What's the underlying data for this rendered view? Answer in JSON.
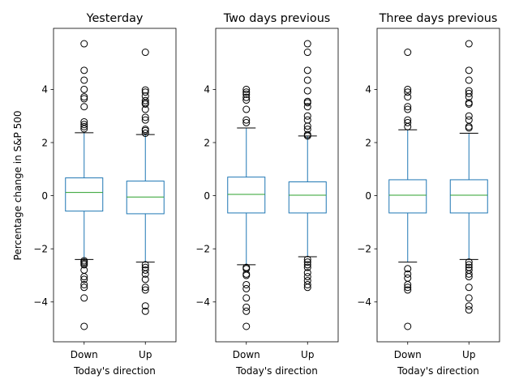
{
  "figure": {
    "shared_ylabel": "Percentage change in S&P 500",
    "box_color": "#1f77b4",
    "median_color": "#2ca02c",
    "flier_color": "#000000"
  },
  "chart_data": [
    {
      "type": "box",
      "title": "Yesterday",
      "xlabel": "Today's direction",
      "ylim": [
        -5.5,
        6.3
      ],
      "yticks": [
        -4,
        -2,
        0,
        2,
        4
      ],
      "ytick_labels": [
        "−4",
        "−2",
        "0",
        "2",
        "4"
      ],
      "grid": false,
      "categories": [
        "Down",
        "Up"
      ],
      "boxes": [
        {
          "category": "Down",
          "whisker_low": -2.4,
          "q1": -0.58,
          "median": 0.12,
          "q3": 0.67,
          "whisker_high": 2.37,
          "fliers": [
            5.72,
            4.72,
            4.35,
            4.0,
            3.72,
            3.65,
            3.35,
            2.78,
            2.68,
            2.6,
            2.52,
            -2.45,
            -2.5,
            -2.55,
            -2.6,
            -2.8,
            -3.05,
            -3.15,
            -3.35,
            -3.45,
            -3.85,
            -4.92
          ]
        },
        {
          "category": "Up",
          "whisker_low": -2.5,
          "q1": -0.68,
          "median": -0.05,
          "q3": 0.55,
          "whisker_high": 2.3,
          "fliers": [
            5.4,
            3.98,
            3.9,
            3.75,
            3.58,
            3.5,
            3.45,
            3.25,
            2.95,
            2.85,
            2.5,
            2.45,
            2.35,
            -2.6,
            -2.7,
            -2.8,
            -2.95,
            -3.15,
            -3.45,
            -3.55,
            -4.15,
            -4.35
          ]
        }
      ]
    },
    {
      "type": "box",
      "title": "Two days previous",
      "xlabel": "Today's direction",
      "ylim": [
        -5.5,
        6.3
      ],
      "yticks": [
        -4,
        -2,
        0,
        2,
        4
      ],
      "ytick_labels": [
        "−4",
        "−2",
        "0",
        "2",
        "4"
      ],
      "grid": false,
      "categories": [
        "Down",
        "Up"
      ],
      "boxes": [
        {
          "category": "Down",
          "whisker_low": -2.6,
          "q1": -0.65,
          "median": 0.05,
          "q3": 0.7,
          "whisker_high": 2.55,
          "fliers": [
            4.0,
            3.9,
            3.82,
            3.7,
            3.6,
            3.25,
            2.85,
            2.75,
            -2.7,
            -2.75,
            -2.95,
            -3.0,
            -3.35,
            -3.5,
            -3.85,
            -4.2,
            -4.35,
            -4.92
          ]
        },
        {
          "category": "Up",
          "whisker_low": -2.3,
          "q1": -0.65,
          "median": 0.02,
          "q3": 0.52,
          "whisker_high": 2.25,
          "fliers": [
            5.72,
            5.4,
            4.72,
            4.35,
            3.95,
            3.55,
            3.5,
            3.35,
            3.0,
            2.85,
            2.62,
            2.5,
            2.3,
            2.25,
            -2.4,
            -2.5,
            -2.6,
            -2.7,
            -2.9,
            -3.05,
            -3.2,
            -3.35,
            -3.45
          ]
        }
      ]
    },
    {
      "type": "box",
      "title": "Three days previous",
      "xlabel": "Today's direction",
      "ylim": [
        -5.5,
        6.3
      ],
      "yticks": [
        -4,
        -2,
        0,
        2,
        4
      ],
      "ytick_labels": [
        "−4",
        "−2",
        "0",
        "2",
        "4"
      ],
      "grid": false,
      "categories": [
        "Down",
        "Up"
      ],
      "boxes": [
        {
          "category": "Down",
          "whisker_low": -2.5,
          "q1": -0.65,
          "median": 0.02,
          "q3": 0.6,
          "whisker_high": 2.48,
          "fliers": [
            5.4,
            4.0,
            3.9,
            3.72,
            3.35,
            3.25,
            2.85,
            2.75,
            2.6,
            -2.75,
            -2.95,
            -3.1,
            -3.35,
            -3.45,
            -3.55,
            -4.92
          ]
        },
        {
          "category": "Up",
          "whisker_low": -2.4,
          "q1": -0.65,
          "median": 0.02,
          "q3": 0.6,
          "whisker_high": 2.35,
          "fliers": [
            5.72,
            4.72,
            4.35,
            3.95,
            3.85,
            3.72,
            3.5,
            3.45,
            3.0,
            2.85,
            2.6,
            2.55,
            -2.5,
            -2.6,
            -2.7,
            -2.8,
            -2.95,
            -3.05,
            -3.45,
            -3.85,
            -4.15,
            -4.3
          ]
        }
      ]
    }
  ]
}
